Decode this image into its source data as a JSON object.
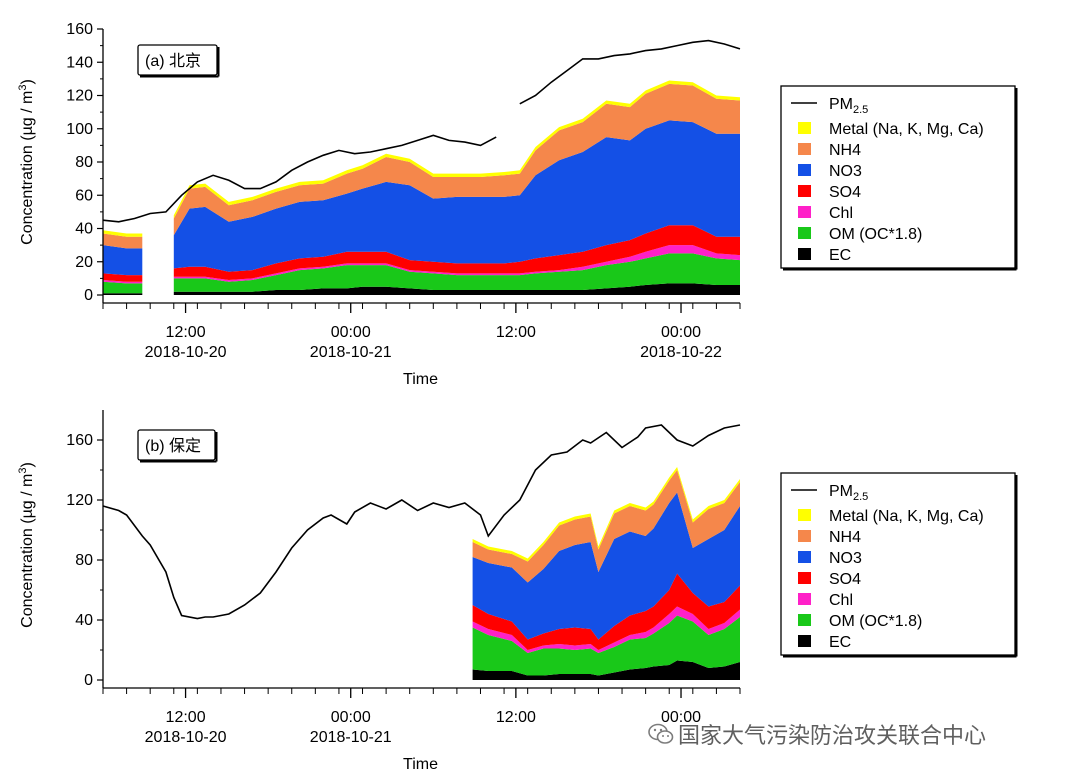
{
  "chart_data": [
    {
      "type": "area",
      "panel_label": "(a) 北京",
      "xlabel": "Time",
      "ylabel": "Concentration (µg / m",
      "ylabel_sup": "3",
      "ylabel_end": ")",
      "ylim": [
        0,
        160
      ],
      "yticks": [
        0,
        20,
        40,
        60,
        80,
        100,
        120,
        140,
        160
      ],
      "xlim": [
        0,
        81
      ],
      "xticks": [
        {
          "x": 10.5,
          "time": "12:00",
          "date": "2018-10-20"
        },
        {
          "x": 31.5,
          "time": "00:00",
          "date": "2018-10-21"
        },
        {
          "x": 52.5,
          "time": "12:00",
          "date": ""
        },
        {
          "x": 73.5,
          "time": "00:00",
          "date": "2018-10-22"
        }
      ],
      "legend_position": "right",
      "x": [
        0,
        3,
        5,
        8,
        9,
        11,
        13,
        16,
        19,
        22,
        25,
        28,
        31,
        33,
        36,
        39,
        42,
        45,
        48,
        51,
        53,
        55,
        58,
        61,
        64,
        67,
        69,
        72,
        75,
        78,
        81
      ],
      "series": [
        {
          "name": "EC",
          "color": "#000000",
          "values": [
            1,
            1,
            1,
            null,
            2,
            2,
            2,
            2,
            2,
            3,
            3,
            4,
            4,
            5,
            5,
            4,
            3,
            3,
            3,
            3,
            3,
            3,
            3,
            3,
            4,
            5,
            6,
            7,
            7,
            6,
            6
          ]
        },
        {
          "name": "OM (OC*1.8)",
          "color": "#19c819",
          "values": [
            7,
            6,
            6,
            null,
            8,
            8,
            8,
            6,
            7,
            9,
            12,
            12,
            14,
            13,
            13,
            10,
            10,
            9,
            9,
            9,
            9,
            10,
            11,
            12,
            14,
            15,
            16,
            18,
            18,
            16,
            15
          ]
        },
        {
          "name": "Chl",
          "color": "#ff20c8",
          "values": [
            1,
            1,
            1,
            null,
            1,
            1,
            1,
            1,
            1,
            1,
            1,
            1,
            1,
            1,
            1,
            1,
            1,
            1,
            1,
            1,
            1,
            1,
            1,
            2,
            2,
            3,
            4,
            5,
            5,
            3,
            3
          ]
        },
        {
          "name": "SO4",
          "color": "#ff0000",
          "values": [
            4,
            4,
            4,
            null,
            5,
            6,
            6,
            5,
            5,
            6,
            6,
            6,
            7,
            7,
            7,
            6,
            6,
            6,
            6,
            6,
            7,
            8,
            9,
            9,
            10,
            10,
            11,
            12,
            12,
            10,
            11
          ]
        },
        {
          "name": "NO3",
          "color": "#1450e6",
          "values": [
            17,
            16,
            16,
            null,
            20,
            35,
            36,
            30,
            32,
            33,
            34,
            34,
            35,
            38,
            42,
            45,
            38,
            40,
            40,
            40,
            40,
            50,
            57,
            60,
            65,
            60,
            63,
            63,
            62,
            62,
            62
          ]
        },
        {
          "name": "NH4",
          "color": "#f5874b",
          "values": [
            7,
            7,
            7,
            null,
            10,
            12,
            12,
            10,
            10,
            10,
            10,
            10,
            12,
            12,
            15,
            14,
            13,
            12,
            12,
            13,
            13,
            15,
            18,
            18,
            20,
            20,
            21,
            22,
            22,
            21,
            20
          ]
        },
        {
          "name": "Metal (Na, K, Mg, Ca)",
          "color": "#ffff00",
          "values": [
            2,
            2,
            2,
            null,
            2,
            2,
            2,
            2,
            2,
            2,
            2,
            2,
            2,
            2,
            2,
            2,
            2,
            2,
            2,
            2,
            2,
            2,
            2,
            2,
            2,
            2,
            2,
            2,
            2,
            2,
            2
          ]
        }
      ],
      "pm25": {
        "name": "PM2.5",
        "segments": [
          {
            "x": [
              0,
              2,
              4,
              6,
              8,
              10,
              12,
              14,
              16,
              18,
              20,
              22,
              24,
              26,
              28,
              30,
              32,
              34,
              36,
              38,
              40,
              42,
              44,
              46,
              48,
              50
            ],
            "y": [
              45,
              44,
              46,
              49,
              50,
              60,
              68,
              72,
              69,
              64,
              64,
              68,
              75,
              80,
              84,
              87,
              85,
              86,
              88,
              90,
              93,
              96,
              93,
              92,
              90,
              95
            ]
          },
          {
            "x": [
              53,
              55,
              57,
              59,
              61,
              63,
              65,
              67,
              69,
              71,
              73,
              75,
              77,
              79,
              81
            ],
            "y": [
              115,
              120,
              128,
              135,
              142,
              142,
              144,
              145,
              147,
              148,
              150,
              152,
              153,
              151,
              148
            ]
          }
        ]
      }
    },
    {
      "type": "area",
      "panel_label": "(b) 保定",
      "xlabel": "Time",
      "ylabel": "Concentration (µg / m",
      "ylabel_sup": "3",
      "ylabel_end": ")",
      "ylim": [
        0,
        180
      ],
      "yticks": [
        0,
        40,
        80,
        120,
        160
      ],
      "xlim": [
        0,
        81
      ],
      "xticks": [
        {
          "x": 10.5,
          "time": "12:00",
          "date": "2018-10-20"
        },
        {
          "x": 31.5,
          "time": "00:00",
          "date": "2018-10-21"
        },
        {
          "x": 52.5,
          "time": "12:00",
          "date": ""
        },
        {
          "x": 73.5,
          "time": "00:00",
          "date": ""
        }
      ],
      "legend_position": "right",
      "x": [
        47,
        49,
        52,
        54,
        56,
        58,
        60,
        62,
        63,
        65,
        67,
        69,
        70,
        72,
        73,
        75,
        77,
        79,
        81
      ],
      "series": [
        {
          "name": "EC",
          "color": "#000000",
          "values": [
            7,
            6,
            6,
            3,
            3,
            4,
            4,
            4,
            3,
            5,
            7,
            8,
            9,
            10,
            13,
            12,
            8,
            9,
            12
          ]
        },
        {
          "name": "OM (OC*1.8)",
          "color": "#19c819",
          "values": [
            28,
            24,
            20,
            15,
            18,
            17,
            16,
            17,
            15,
            17,
            20,
            20,
            22,
            28,
            30,
            27,
            22,
            25,
            30
          ]
        },
        {
          "name": "Chl",
          "color": "#ff20c8",
          "values": [
            4,
            4,
            4,
            2,
            2,
            3,
            3,
            3,
            2,
            3,
            3,
            4,
            4,
            6,
            6,
            5,
            4,
            4,
            5
          ]
        },
        {
          "name": "SO4",
          "color": "#ff0000",
          "values": [
            11,
            10,
            9,
            7,
            8,
            10,
            12,
            10,
            7,
            11,
            13,
            14,
            14,
            16,
            22,
            14,
            15,
            14,
            16
          ]
        },
        {
          "name": "NO3",
          "color": "#1450e6",
          "values": [
            32,
            34,
            36,
            38,
            43,
            52,
            55,
            58,
            45,
            58,
            56,
            50,
            52,
            58,
            54,
            30,
            45,
            48,
            53
          ]
        },
        {
          "name": "NH4",
          "color": "#f5874b",
          "values": [
            10,
            9,
            9,
            14,
            16,
            17,
            17,
            17,
            15,
            17,
            17,
            17,
            16,
            15,
            15,
            17,
            20,
            18,
            16
          ]
        },
        {
          "name": "Metal (Na, K, Mg, Ca)",
          "color": "#ffff00",
          "values": [
            2,
            2,
            2,
            2,
            2,
            2,
            2,
            2,
            2,
            2,
            2,
            2,
            2,
            2,
            2,
            2,
            2,
            2,
            2
          ]
        }
      ],
      "pm25": {
        "name": "PM2.5",
        "segments": [
          {
            "x": [
              0,
              2,
              3,
              5,
              6,
              8,
              9,
              10,
              12,
              13,
              14,
              16,
              18,
              20,
              22,
              24,
              26,
              28,
              29,
              31,
              32,
              34,
              36,
              38,
              40,
              42,
              44,
              46,
              48,
              49,
              51,
              53,
              55,
              57,
              59,
              61,
              62,
              64,
              66,
              68,
              69,
              71,
              73,
              75,
              77,
              79,
              81
            ],
            "y": [
              116,
              113,
              110,
              96,
              90,
              72,
              55,
              43,
              41,
              42,
              42,
              44,
              50,
              58,
              72,
              88,
              100,
              108,
              110,
              104,
              112,
              118,
              114,
              120,
              113,
              118,
              115,
              118,
              110,
              96,
              110,
              120,
              140,
              150,
              152,
              160,
              158,
              165,
              155,
              162,
              168,
              170,
              160,
              156,
              163,
              168,
              170
            ]
          }
        ]
      }
    }
  ],
  "legend": {
    "pm_main": "PM",
    "pm_sub": "2.5",
    "items": [
      "Metal (Na, K, Mg, Ca)",
      "NH4",
      "NO3",
      "SO4",
      "Chl",
      "OM (OC*1.8)",
      "EC"
    ]
  },
  "watermark": {
    "text": "国家大气污染防治攻关联合中心",
    "icon": "wechat-icon"
  }
}
